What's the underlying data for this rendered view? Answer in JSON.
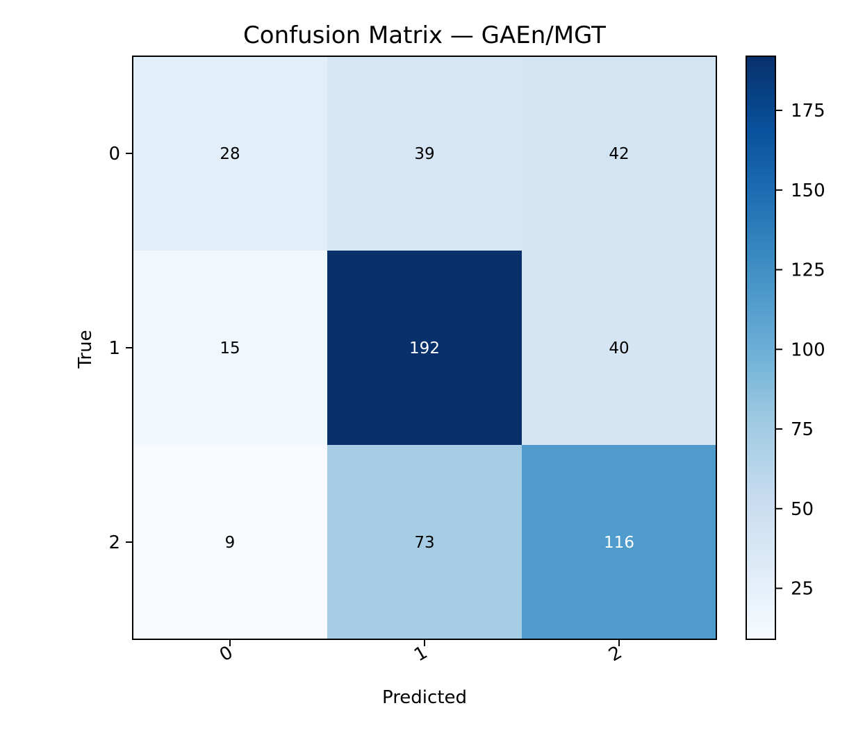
{
  "chart_data": {
    "type": "heatmap",
    "title": "Confusion Matrix — GAEn/MGT",
    "xlabel": "Predicted",
    "ylabel": "True",
    "x_categories": [
      "0",
      "1",
      "2"
    ],
    "y_categories": [
      "0",
      "1",
      "2"
    ],
    "values": [
      [
        28,
        39,
        42
      ],
      [
        15,
        192,
        40
      ],
      [
        9,
        73,
        116
      ]
    ],
    "colormap": "Blues",
    "color_min": 9,
    "color_max": 192,
    "colorbar_ticks": [
      25,
      50,
      75,
      100,
      125,
      150,
      175
    ],
    "colorbar_tick_labels": [
      "25",
      "50",
      "75",
      "100",
      "125",
      "150",
      "175"
    ],
    "grid": false,
    "colorbar_position": "right"
  }
}
